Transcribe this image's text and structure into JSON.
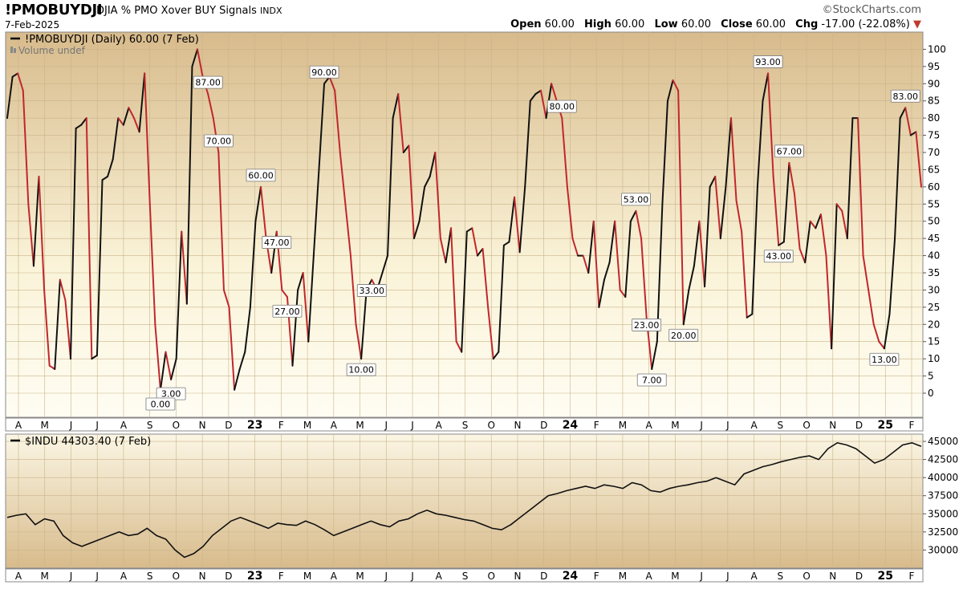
{
  "header": {
    "symbol": "!PMOBUYDJI",
    "description": "DJIA % PMO Xover BUY Signals",
    "exchange": "INDX",
    "date": "7-Feb-2025",
    "brand": "©StockCharts.com",
    "open_label": "Open",
    "open": "60.00",
    "high_label": "High",
    "high": "60.00",
    "low_label": "Low",
    "low": "60.00",
    "close_label": "Close",
    "close": "60.00",
    "chg_label": "Chg",
    "chg": "-17.00 (-22.08%)"
  },
  "colors": {
    "rising": "#111111",
    "falling": "#c0272d",
    "panel_top": "#d8bb8c",
    "panel_mid": "#faf3d8",
    "grid": "#c9b48a"
  },
  "chart_data": [
    {
      "type": "line",
      "title": "!PMOBUYDJI (Daily) 60.00 (7 Feb)",
      "volume_label": "Volume undef",
      "ylim": [
        -7,
        105
      ],
      "yticks": [
        0,
        5,
        10,
        15,
        20,
        25,
        30,
        35,
        40,
        45,
        50,
        55,
        60,
        65,
        70,
        75,
        80,
        85,
        90,
        95,
        100
      ],
      "x_labels": [
        "A",
        "M",
        "J",
        "J",
        "A",
        "S",
        "O",
        "N",
        "D",
        "23",
        "F",
        "M",
        "A",
        "M",
        "J",
        "J",
        "A",
        "S",
        "O",
        "N",
        "D",
        "24",
        "F",
        "M",
        "A",
        "M",
        "J",
        "J",
        "A",
        "S",
        "O",
        "N",
        "D",
        "25",
        "F"
      ],
      "bold_x_labels": [
        "23",
        "24",
        "25"
      ],
      "series": [
        {
          "values": [
            80,
            92,
            93,
            88,
            55,
            37,
            63,
            30,
            8,
            7,
            33,
            27,
            10,
            77,
            78,
            80,
            10,
            11,
            62,
            63,
            68,
            80,
            78,
            83,
            80,
            76,
            93,
            55,
            20,
            1,
            12,
            4,
            10,
            47,
            26,
            95,
            100,
            92,
            87,
            80,
            70,
            30,
            25,
            1,
            7,
            12,
            25,
            50,
            60,
            45,
            35,
            47,
            30,
            28,
            8,
            30,
            35,
            15,
            40,
            65,
            90,
            92,
            88,
            70,
            55,
            40,
            20,
            10,
            30,
            33,
            30,
            35,
            40,
            80,
            87,
            70,
            72,
            45,
            50,
            60,
            63,
            70,
            45,
            38,
            48,
            15,
            12,
            47,
            48,
            40,
            42,
            25,
            10,
            12,
            43,
            44,
            57,
            41,
            60,
            85,
            87,
            88,
            80,
            90,
            85,
            80,
            60,
            45,
            40,
            40,
            35,
            50,
            25,
            33,
            38,
            50,
            30,
            28,
            50,
            53,
            45,
            22,
            7,
            15,
            55,
            85,
            91,
            88,
            20,
            30,
            37,
            50,
            31,
            60,
            63,
            45,
            60,
            80,
            56,
            47,
            22,
            23,
            60,
            85,
            93,
            63,
            43,
            44,
            67,
            58,
            42,
            38,
            50,
            48,
            52,
            40,
            13,
            55,
            53,
            45,
            80,
            80,
            40,
            30,
            20,
            15,
            13,
            23,
            45,
            80,
            83,
            75,
            76,
            60
          ]
        },
        {
          "label": "",
          "values": []
        }
      ],
      "annotations": [
        {
          "label": "3.00",
          "value": 3
        },
        {
          "label": "0.00",
          "value": 0
        },
        {
          "label": "60.00",
          "value": 60
        },
        {
          "label": "87.00",
          "value": 87
        },
        {
          "label": "70.00",
          "value": 70
        },
        {
          "label": "47.00",
          "value": 47
        },
        {
          "label": "10.00",
          "value": 10
        },
        {
          "label": "90.00",
          "value": 90
        },
        {
          "label": "33.00",
          "value": 33
        },
        {
          "label": "27.00",
          "value": 27
        },
        {
          "label": "53.00",
          "value": 53
        },
        {
          "label": "7.00",
          "value": 7
        },
        {
          "label": "20.00",
          "value": 20
        },
        {
          "label": "80.00",
          "value": 80
        },
        {
          "label": "23.00",
          "value": 23
        },
        {
          "label": "93.00",
          "value": 93
        },
        {
          "label": "43.00",
          "value": 43
        },
        {
          "label": "67.00",
          "value": 67
        },
        {
          "label": "13.00",
          "value": 13
        },
        {
          "label": "83.00",
          "value": 83
        }
      ]
    },
    {
      "type": "line",
      "title": "$INDU 44303.40 (7 Feb)",
      "ylim": [
        27500,
        46000
      ],
      "yticks": [
        30000,
        32500,
        35000,
        37500,
        40000,
        42500,
        45000
      ],
      "x_labels": [
        "A",
        "M",
        "J",
        "J",
        "A",
        "S",
        "O",
        "N",
        "D",
        "23",
        "F",
        "M",
        "A",
        "M",
        "J",
        "J",
        "A",
        "S",
        "O",
        "N",
        "D",
        "24",
        "F",
        "M",
        "A",
        "M",
        "J",
        "J",
        "A",
        "S",
        "O",
        "N",
        "D",
        "25",
        "F"
      ],
      "bold_x_labels": [
        "23",
        "24",
        "25"
      ],
      "series": [
        {
          "values": [
            34500,
            34800,
            35000,
            33500,
            34300,
            34000,
            32000,
            31000,
            30500,
            31000,
            31500,
            32000,
            32500,
            32000,
            32200,
            33000,
            32000,
            31500,
            30000,
            29000,
            29500,
            30500,
            32000,
            33000,
            34000,
            34500,
            34000,
            33500,
            33000,
            33700,
            33500,
            33400,
            34000,
            33500,
            32800,
            32000,
            32500,
            33000,
            33500,
            34000,
            33500,
            33200,
            34000,
            34300,
            35000,
            35500,
            35000,
            34800,
            34500,
            34200,
            34000,
            33500,
            33000,
            32800,
            33500,
            34500,
            35500,
            36500,
            37500,
            37800,
            38200,
            38500,
            38800,
            38500,
            39000,
            38800,
            38500,
            39300,
            39000,
            38200,
            38000,
            38500,
            38800,
            39000,
            39300,
            39500,
            40000,
            39500,
            39000,
            40500,
            41000,
            41500,
            41800,
            42200,
            42500,
            42800,
            43000,
            42500,
            44000,
            44800,
            44500,
            44000,
            43000,
            42000,
            42500,
            43500,
            44500,
            44800,
            44300
          ]
        }
      ]
    }
  ]
}
